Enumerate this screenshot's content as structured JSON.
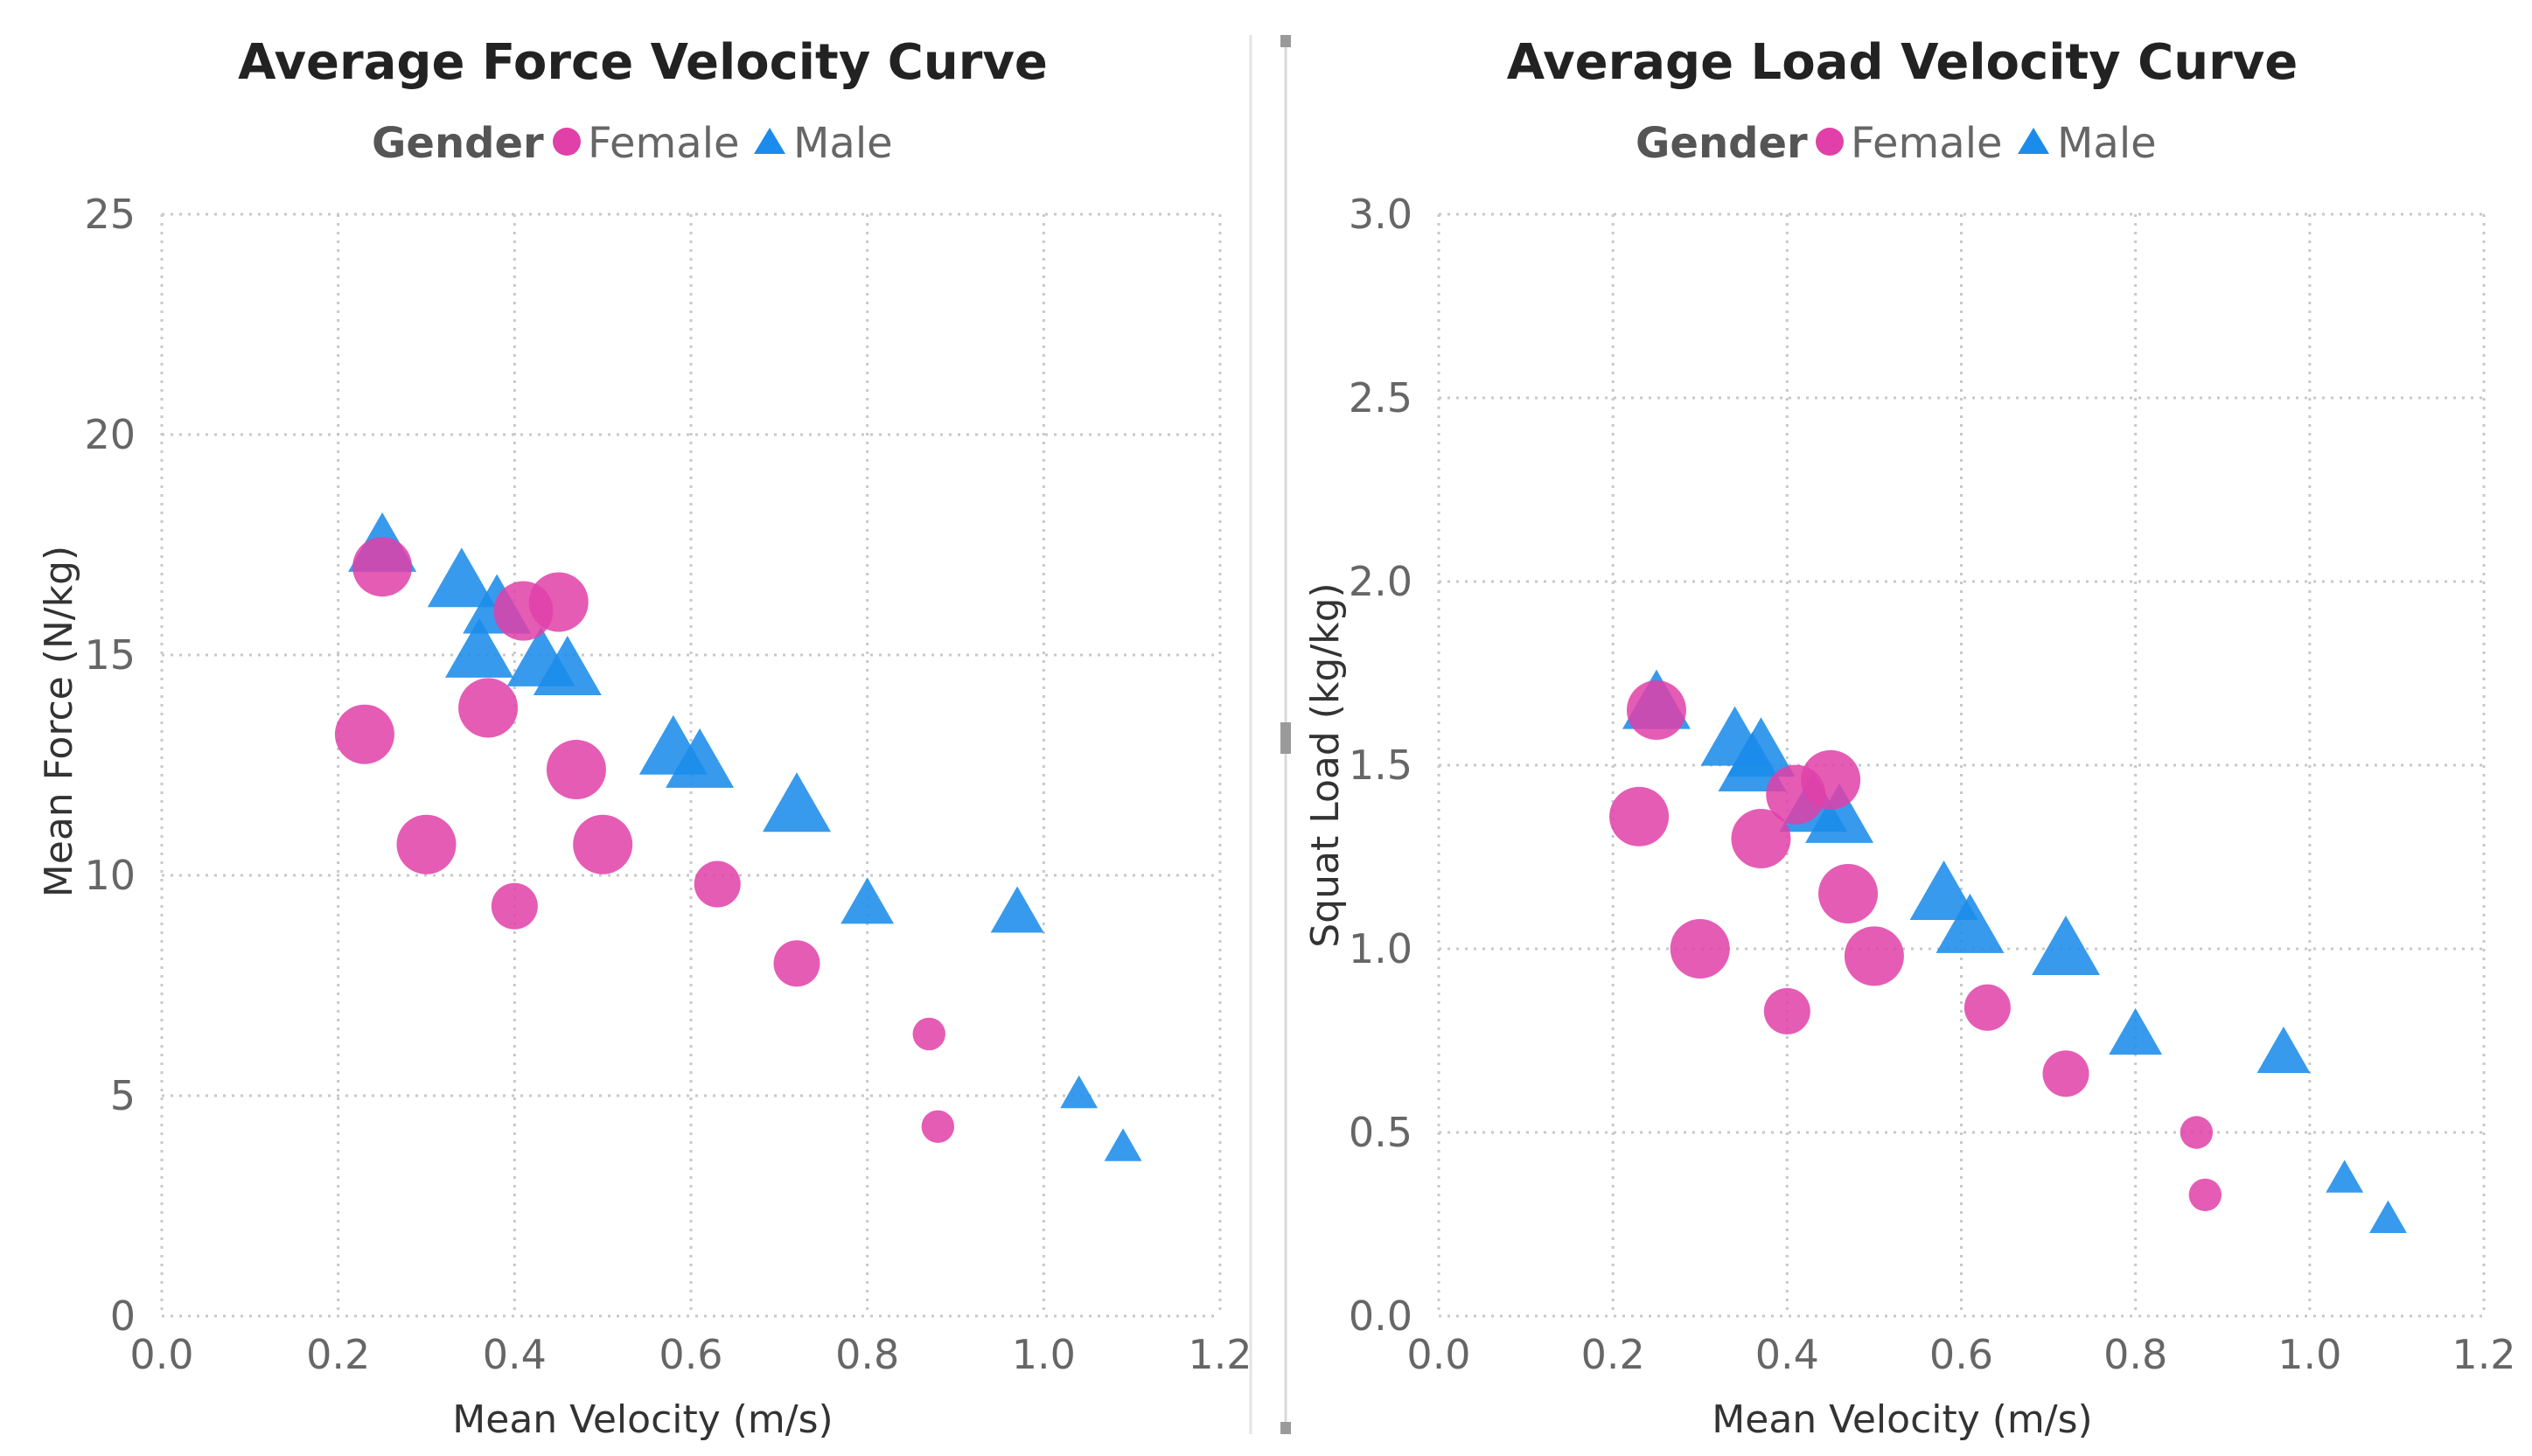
{
  "colors": {
    "female": "#E040A8",
    "male": "#1B8CEB",
    "grid": "#c8c8c8",
    "divider": "#d0d0d0"
  },
  "chart_data": [
    {
      "type": "scatter",
      "title": "Average Force Velocity Curve",
      "legend": {
        "title": "Gender",
        "placement": "top-center",
        "entries": [
          {
            "name": "Female",
            "marker": "circle"
          },
          {
            "name": "Male",
            "marker": "triangle"
          }
        ]
      },
      "xlabel": "Mean Velocity (m/s)",
      "ylabel": "Mean Force (N/kg)",
      "xlim": [
        0,
        1.2
      ],
      "ylim": [
        0,
        25
      ],
      "xticks": [
        0,
        0.2,
        0.4,
        0.6,
        0.8,
        1.0,
        1.2
      ],
      "xtick_labels": [
        "0.0",
        "0.2",
        "0.4",
        "0.6",
        "0.8",
        "1.0",
        "1.2"
      ],
      "yticks": [
        0,
        5,
        10,
        15,
        20,
        25
      ],
      "ytick_labels": [
        "0",
        "5",
        "10",
        "15",
        "20",
        "25"
      ],
      "grid": true,
      "series": [
        {
          "name": "Female",
          "marker": "circle",
          "points": [
            {
              "x": 0.25,
              "y": 17.0,
              "size": 3
            },
            {
              "x": 0.41,
              "y": 16.0,
              "size": 3
            },
            {
              "x": 0.45,
              "y": 16.2,
              "size": 3
            },
            {
              "x": 0.23,
              "y": 13.2,
              "size": 3
            },
            {
              "x": 0.37,
              "y": 13.8,
              "size": 3
            },
            {
              "x": 0.47,
              "y": 12.4,
              "size": 3
            },
            {
              "x": 0.3,
              "y": 10.7,
              "size": 3
            },
            {
              "x": 0.5,
              "y": 10.7,
              "size": 3
            },
            {
              "x": 0.4,
              "y": 9.3,
              "size": 2
            },
            {
              "x": 0.63,
              "y": 9.8,
              "size": 2
            },
            {
              "x": 0.72,
              "y": 8.0,
              "size": 2
            },
            {
              "x": 0.87,
              "y": 6.4,
              "size": 1
            },
            {
              "x": 0.88,
              "y": 4.3,
              "size": 1
            }
          ]
        },
        {
          "name": "Male",
          "marker": "triangle",
          "points": [
            {
              "x": 0.25,
              "y": 17.4,
              "size": 3
            },
            {
              "x": 0.34,
              "y": 16.6,
              "size": 3
            },
            {
              "x": 0.38,
              "y": 16.0,
              "size": 3
            },
            {
              "x": 0.36,
              "y": 15.0,
              "size": 3
            },
            {
              "x": 0.43,
              "y": 14.8,
              "size": 3
            },
            {
              "x": 0.46,
              "y": 14.6,
              "size": 3
            },
            {
              "x": 0.58,
              "y": 12.8,
              "size": 3
            },
            {
              "x": 0.61,
              "y": 12.5,
              "size": 3
            },
            {
              "x": 0.72,
              "y": 11.5,
              "size": 3
            },
            {
              "x": 0.8,
              "y": 9.3,
              "size": 2
            },
            {
              "x": 0.97,
              "y": 9.1,
              "size": 2
            },
            {
              "x": 1.04,
              "y": 5.0,
              "size": 1
            },
            {
              "x": 1.09,
              "y": 3.8,
              "size": 1
            }
          ]
        }
      ]
    },
    {
      "type": "scatter",
      "title": "Average Load Velocity Curve",
      "legend": {
        "title": "Gender",
        "placement": "top-center",
        "entries": [
          {
            "name": "Female",
            "marker": "circle"
          },
          {
            "name": "Male",
            "marker": "triangle"
          }
        ]
      },
      "xlabel": "Mean Velocity (m/s)",
      "ylabel": "Squat Load (kg/kg)",
      "xlim": [
        0,
        1.2
      ],
      "ylim": [
        0,
        3
      ],
      "xticks": [
        0,
        0.2,
        0.4,
        0.6,
        0.8,
        1.0,
        1.2
      ],
      "xtick_labels": [
        "0.0",
        "0.2",
        "0.4",
        "0.6",
        "0.8",
        "1.0",
        "1.2"
      ],
      "yticks": [
        0,
        0.5,
        1,
        1.5,
        2,
        2.5,
        3
      ],
      "ytick_labels": [
        "0.0",
        "0.5",
        "1.0",
        "1.5",
        "2.0",
        "2.5",
        "3.0"
      ],
      "grid": true,
      "series": [
        {
          "name": "Female",
          "marker": "circle",
          "points": [
            {
              "x": 0.25,
              "y": 1.65,
              "size": 3
            },
            {
              "x": 0.41,
              "y": 1.42,
              "size": 3
            },
            {
              "x": 0.45,
              "y": 1.46,
              "size": 3
            },
            {
              "x": 0.23,
              "y": 1.36,
              "size": 3
            },
            {
              "x": 0.37,
              "y": 1.3,
              "size": 3
            },
            {
              "x": 0.47,
              "y": 1.15,
              "size": 3
            },
            {
              "x": 0.3,
              "y": 1.0,
              "size": 3
            },
            {
              "x": 0.5,
              "y": 0.98,
              "size": 3
            },
            {
              "x": 0.4,
              "y": 0.83,
              "size": 2
            },
            {
              "x": 0.63,
              "y": 0.84,
              "size": 2
            },
            {
              "x": 0.72,
              "y": 0.66,
              "size": 2
            },
            {
              "x": 0.87,
              "y": 0.5,
              "size": 1
            },
            {
              "x": 0.88,
              "y": 0.33,
              "size": 1
            }
          ]
        },
        {
          "name": "Male",
          "marker": "triangle",
          "points": [
            {
              "x": 0.25,
              "y": 1.66,
              "size": 3
            },
            {
              "x": 0.34,
              "y": 1.56,
              "size": 3
            },
            {
              "x": 0.37,
              "y": 1.53,
              "size": 3
            },
            {
              "x": 0.36,
              "y": 1.49,
              "size": 3
            },
            {
              "x": 0.43,
              "y": 1.38,
              "size": 3
            },
            {
              "x": 0.46,
              "y": 1.35,
              "size": 3
            },
            {
              "x": 0.58,
              "y": 1.14,
              "size": 3
            },
            {
              "x": 0.61,
              "y": 1.05,
              "size": 3
            },
            {
              "x": 0.72,
              "y": 0.99,
              "size": 3
            },
            {
              "x": 0.8,
              "y": 0.76,
              "size": 2
            },
            {
              "x": 0.97,
              "y": 0.71,
              "size": 2
            },
            {
              "x": 1.04,
              "y": 0.37,
              "size": 1
            },
            {
              "x": 1.09,
              "y": 0.26,
              "size": 1
            }
          ]
        }
      ]
    }
  ]
}
